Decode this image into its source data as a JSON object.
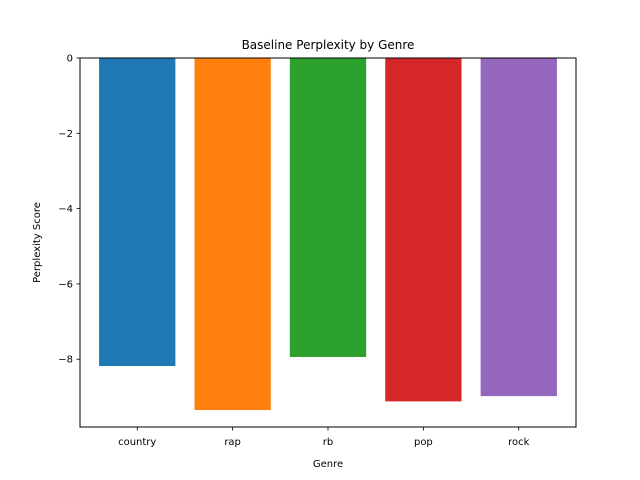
{
  "chart_data": {
    "type": "bar",
    "title": "Baseline Perplexity by Genre",
    "xlabel": "Genre",
    "ylabel": "Perplexity Score",
    "categories": [
      "country",
      "rap",
      "rb",
      "pop",
      "rock"
    ],
    "values": [
      -8.18,
      -9.35,
      -7.94,
      -9.12,
      -8.98
    ],
    "colors": [
      "#1f77b4",
      "#ff7f0e",
      "#2ca02c",
      "#d62728",
      "#9467bd"
    ],
    "ylim": [
      -9.8,
      0
    ],
    "yticks": [
      0,
      -2,
      -4,
      -6,
      -8
    ],
    "ytick_labels": [
      "0",
      "−2",
      "−4",
      "−6",
      "−8"
    ],
    "grid": false,
    "legend": false
  }
}
